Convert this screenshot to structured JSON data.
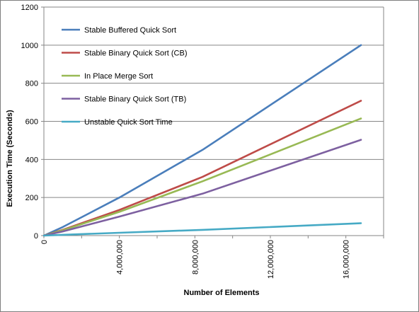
{
  "chart_data": {
    "type": "line",
    "title": "",
    "xlabel": "Number of Elements",
    "ylabel": "Execution Time (Seconds)",
    "xlim": [
      0,
      18000000
    ],
    "ylim": [
      0,
      1200
    ],
    "yticks": [
      0,
      200,
      400,
      600,
      800,
      1000,
      1200
    ],
    "xticks": [
      0,
      4000000,
      8000000,
      12000000,
      16000000
    ],
    "xtick_labels": [
      "0",
      "4,000,000",
      "8,000,000",
      "12,000,000",
      "16,000,000"
    ],
    "grid": "horizontal",
    "legend_position": "top-left",
    "series": [
      {
        "name": "Stable Buffered Quick Sort",
        "color": "#4a7ebb",
        "x": [
          0,
          1000000,
          4000000,
          8400000,
          16800000
        ],
        "y": [
          0,
          45,
          200,
          450,
          1000
        ]
      },
      {
        "name": "Stable Binary Quick Sort (CB)",
        "color": "#be4b48",
        "x": [
          0,
          1000000,
          4000000,
          8400000,
          16800000
        ],
        "y": [
          0,
          30,
          135,
          308,
          708
        ]
      },
      {
        "name": "In Place Merge Sort",
        "color": "#98b954",
        "x": [
          0,
          1000000,
          4000000,
          8400000,
          16800000
        ],
        "y": [
          0,
          28,
          125,
          285,
          615
        ]
      },
      {
        "name": "Stable Binary Quick Sort (TB)",
        "color": "#7d60a0",
        "x": [
          0,
          1000000,
          4000000,
          8400000,
          16800000
        ],
        "y": [
          0,
          22,
          100,
          220,
          503
        ]
      },
      {
        "name": "Unstable Quick Sort Time",
        "color": "#46aac5",
        "x": [
          0,
          1000000,
          4000000,
          8400000,
          16800000
        ],
        "y": [
          0,
          4,
          15,
          30,
          65
        ]
      }
    ]
  }
}
